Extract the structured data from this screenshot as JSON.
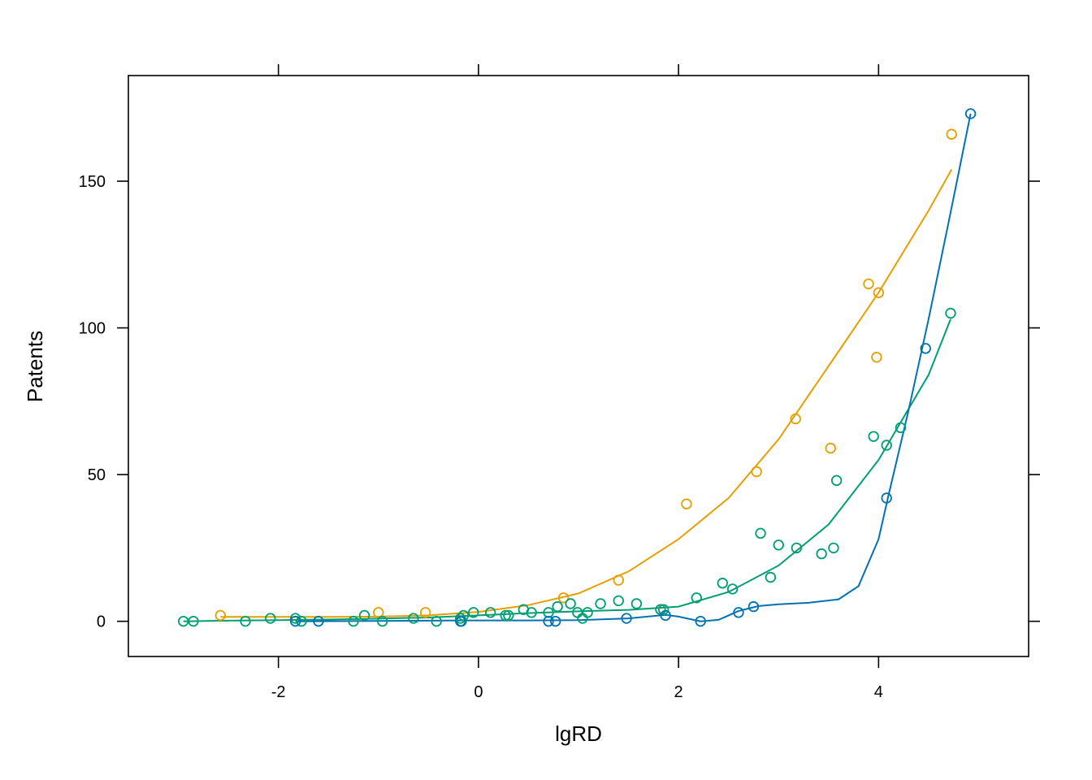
{
  "chart_data": {
    "type": "scatter",
    "xlabel": "lgRD",
    "ylabel": "Patents",
    "xlim": [
      -3.5,
      5.5
    ],
    "ylim": [
      -12,
      186
    ],
    "xticks": [
      -2,
      0,
      2,
      4
    ],
    "yticks": [
      0,
      50,
      100,
      150
    ],
    "grid": false,
    "series": [
      {
        "color": "#E69F00",
        "points": [
          [
            -2.58,
            2
          ],
          [
            -1.0,
            3
          ],
          [
            -0.53,
            3
          ],
          [
            0.85,
            8
          ],
          [
            1.4,
            14
          ],
          [
            2.08,
            40
          ],
          [
            2.78,
            51
          ],
          [
            3.17,
            69
          ],
          [
            3.52,
            59
          ],
          [
            3.9,
            115
          ],
          [
            3.98,
            90
          ],
          [
            4.0,
            112
          ],
          [
            4.73,
            166
          ]
        ],
        "smooth": [
          [
            -2.58,
            1.5
          ],
          [
            -2.0,
            1.5
          ],
          [
            -1.5,
            1.5
          ],
          [
            -1.0,
            1.6
          ],
          [
            -0.5,
            2.0
          ],
          [
            0.0,
            3.2
          ],
          [
            0.5,
            5.5
          ],
          [
            1.0,
            9.5
          ],
          [
            1.5,
            17
          ],
          [
            2.0,
            28
          ],
          [
            2.5,
            42
          ],
          [
            3.0,
            62
          ],
          [
            3.5,
            87
          ],
          [
            4.0,
            112
          ],
          [
            4.5,
            140
          ],
          [
            4.73,
            154
          ]
        ]
      },
      {
        "color": "#009E73",
        "points": [
          [
            -2.95,
            0
          ],
          [
            -2.85,
            0
          ],
          [
            -2.33,
            0
          ],
          [
            -2.08,
            1
          ],
          [
            -1.83,
            1
          ],
          [
            -1.77,
            0
          ],
          [
            -1.25,
            0
          ],
          [
            -1.14,
            2
          ],
          [
            -0.96,
            0
          ],
          [
            -0.65,
            1
          ],
          [
            -0.42,
            0
          ],
          [
            -0.18,
            1
          ],
          [
            -0.17,
            0
          ],
          [
            -0.15,
            2
          ],
          [
            -0.05,
            3
          ],
          [
            0.12,
            3
          ],
          [
            0.27,
            2
          ],
          [
            0.3,
            2
          ],
          [
            0.45,
            4
          ],
          [
            0.53,
            3
          ],
          [
            0.7,
            3
          ],
          [
            0.79,
            5
          ],
          [
            0.92,
            6
          ],
          [
            0.99,
            3
          ],
          [
            1.04,
            1
          ],
          [
            1.09,
            3
          ],
          [
            1.22,
            6
          ],
          [
            1.4,
            7
          ],
          [
            1.58,
            6
          ],
          [
            1.82,
            4
          ],
          [
            1.85,
            4
          ],
          [
            2.18,
            8
          ],
          [
            2.44,
            13
          ],
          [
            2.54,
            11
          ],
          [
            2.82,
            30
          ],
          [
            2.92,
            15
          ],
          [
            3.0,
            26
          ],
          [
            3.18,
            25
          ],
          [
            3.43,
            23
          ],
          [
            3.55,
            25
          ],
          [
            3.58,
            48
          ],
          [
            3.95,
            63
          ],
          [
            4.08,
            60
          ],
          [
            4.22,
            66
          ],
          [
            4.72,
            105
          ]
        ],
        "smooth": [
          [
            -2.95,
            0.0
          ],
          [
            -2.5,
            0.2
          ],
          [
            -2.0,
            0.4
          ],
          [
            -1.5,
            0.6
          ],
          [
            -1.0,
            0.9
          ],
          [
            -0.5,
            1.3
          ],
          [
            0.0,
            2.0
          ],
          [
            0.5,
            2.8
          ],
          [
            1.0,
            3.4
          ],
          [
            1.5,
            3.9
          ],
          [
            2.0,
            5.0
          ],
          [
            2.5,
            10
          ],
          [
            3.0,
            19
          ],
          [
            3.5,
            33
          ],
          [
            4.0,
            55
          ],
          [
            4.5,
            84
          ],
          [
            4.72,
            103
          ]
        ]
      },
      {
        "color": "#0072B2",
        "points": [
          [
            -1.83,
            0
          ],
          [
            -1.6,
            0
          ],
          [
            -0.18,
            0
          ],
          [
            0.7,
            0
          ],
          [
            0.77,
            0
          ],
          [
            1.48,
            1
          ],
          [
            1.87,
            2
          ],
          [
            2.22,
            0
          ],
          [
            2.6,
            3
          ],
          [
            2.75,
            5
          ],
          [
            4.08,
            42
          ],
          [
            4.47,
            93
          ],
          [
            4.92,
            173
          ]
        ],
        "smooth": [
          [
            -1.83,
            0.0
          ],
          [
            -1.0,
            0.1
          ],
          [
            -0.18,
            0.3
          ],
          [
            0.5,
            0.3
          ],
          [
            1.0,
            0.4
          ],
          [
            1.5,
            1.0
          ],
          [
            1.87,
            2.2
          ],
          [
            2.0,
            1.6
          ],
          [
            2.22,
            0.0
          ],
          [
            2.4,
            0.5
          ],
          [
            2.6,
            3.5
          ],
          [
            2.8,
            5.2
          ],
          [
            3.0,
            5.8
          ],
          [
            3.3,
            6.3
          ],
          [
            3.6,
            7.5
          ],
          [
            3.8,
            12
          ],
          [
            4.0,
            28
          ],
          [
            4.1,
            43
          ],
          [
            4.3,
            72
          ],
          [
            4.5,
            103
          ],
          [
            4.7,
            136
          ],
          [
            4.92,
            173
          ]
        ]
      }
    ]
  }
}
